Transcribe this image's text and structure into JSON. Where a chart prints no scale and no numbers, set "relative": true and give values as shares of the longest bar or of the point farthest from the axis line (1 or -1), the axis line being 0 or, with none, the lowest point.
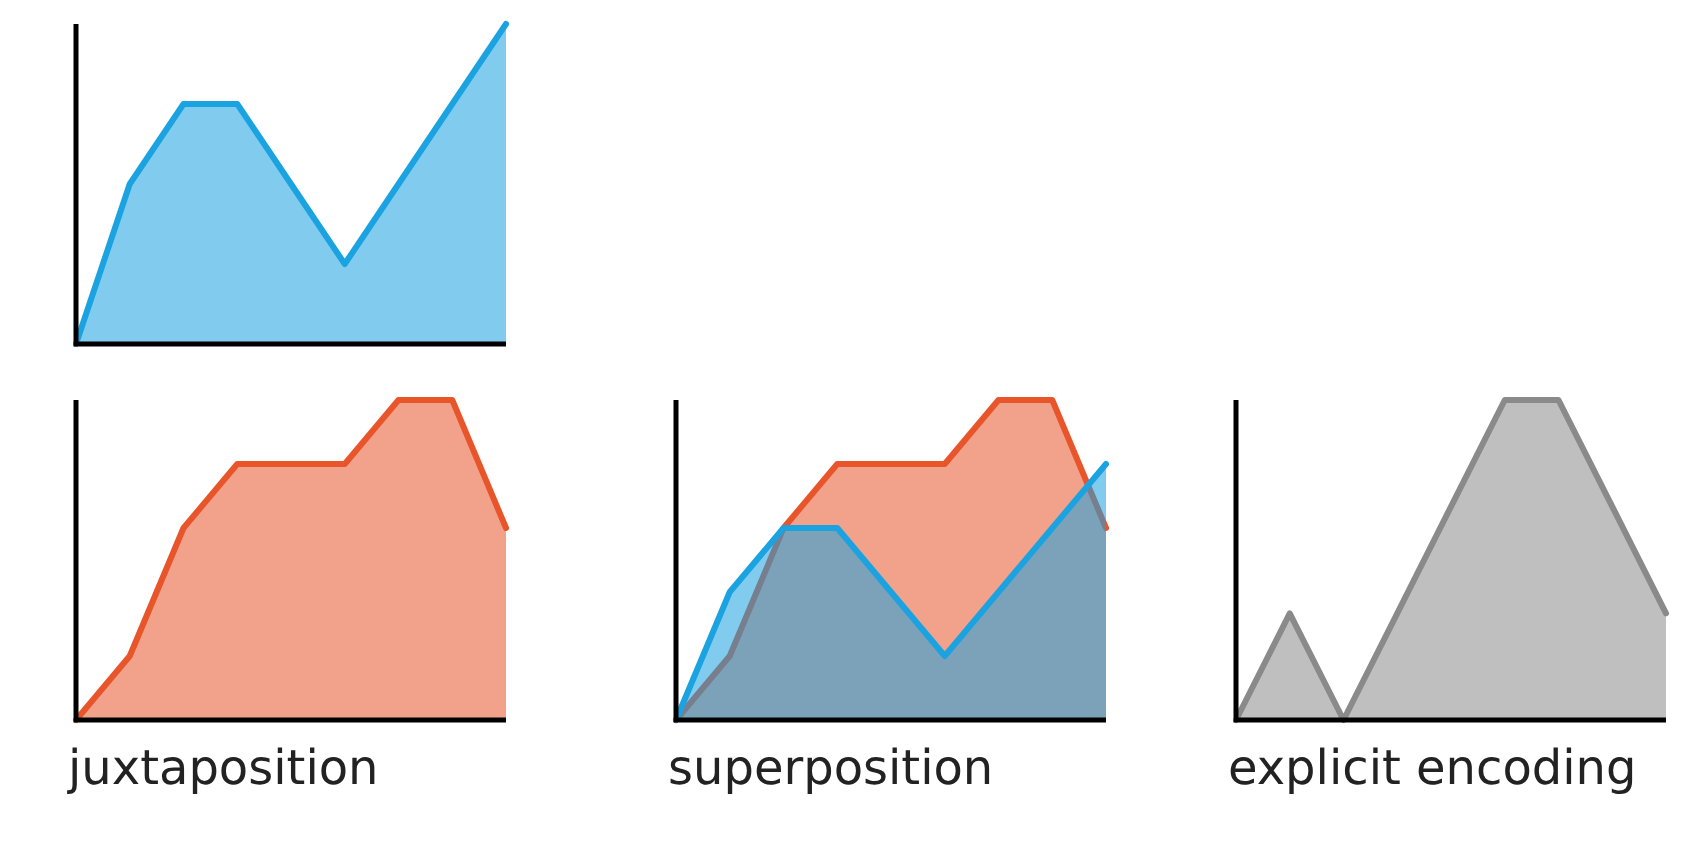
{
  "chart_data": [
    {
      "type": "area",
      "relative": true,
      "categories": [
        null,
        null,
        null,
        null,
        null,
        null,
        null,
        null,
        null
      ],
      "series": [
        {
          "color": "#1aa3e0",
          "values": [
            0,
            0.5,
            0.75,
            0.75,
            0.5,
            0.25,
            0.5,
            0.75,
            1
          ]
        }
      ]
    },
    {
      "type": "area",
      "relative": true,
      "xlabel": "juxtaposition",
      "categories": [
        null,
        null,
        null,
        null,
        null,
        null,
        null,
        null,
        null
      ],
      "series": [
        {
          "color": "#e8552a",
          "values": [
            0,
            0.2,
            0.6,
            0.8,
            0.8,
            0.8,
            1,
            1,
            0.6
          ]
        }
      ]
    },
    {
      "type": "area",
      "relative": true,
      "xlabel": "superposition",
      "categories": [
        null,
        null,
        null,
        null,
        null,
        null,
        null,
        null,
        null
      ],
      "series": [
        {
          "color": "#e8552a",
          "values": [
            0,
            0.2,
            0.6,
            0.8,
            0.8,
            0.8,
            1,
            1,
            0.6
          ]
        },
        {
          "color": "#1aa3e0",
          "values": [
            0,
            0.4,
            0.6,
            0.6,
            0.4,
            0.2,
            0.4,
            0.6,
            0.8
          ]
        }
      ]
    },
    {
      "type": "area",
      "relative": true,
      "xlabel": "explicit encoding",
      "categories": [
        null,
        null,
        null,
        null,
        null,
        null,
        null,
        null,
        null
      ],
      "series": [
        {
          "color": "#8a8a8a",
          "values": [
            0,
            0.333,
            0,
            0.333,
            0.667,
            1,
            1,
            0.667,
            0.333
          ]
        }
      ]
    }
  ]
}
